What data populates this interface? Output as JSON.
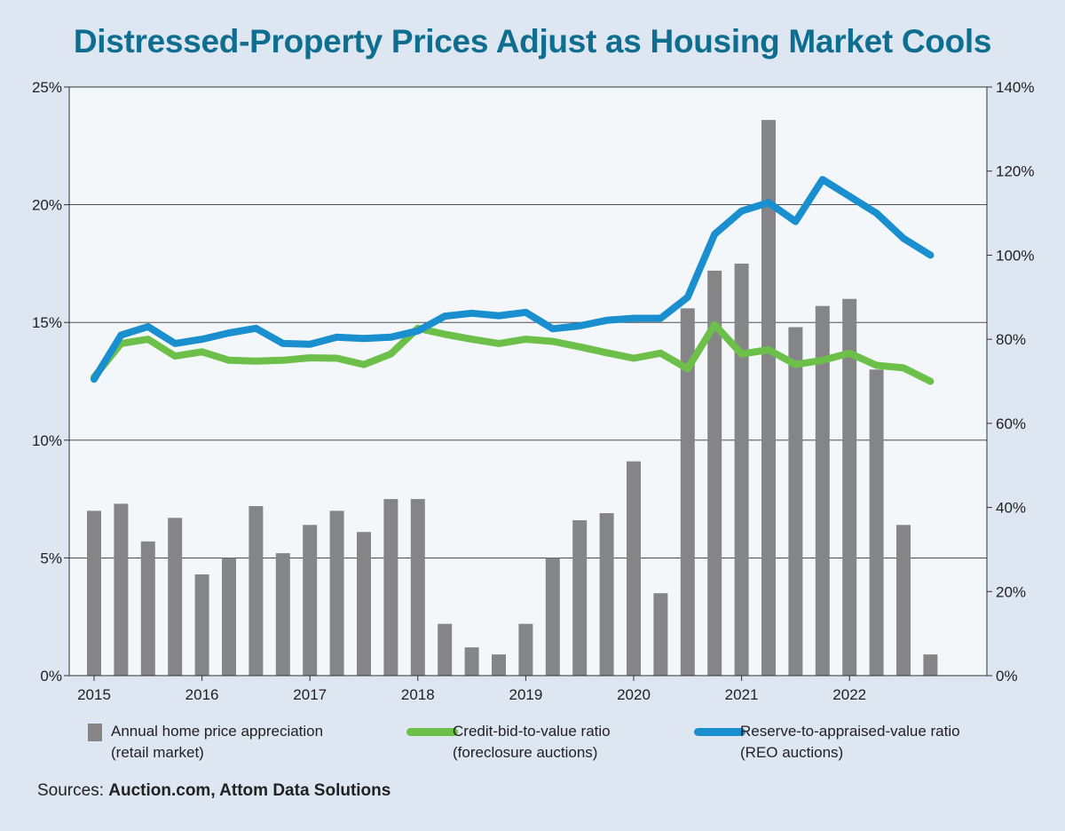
{
  "title": "Distressed-Property Prices Adjust as Housing Market Cools",
  "chart_data": {
    "type": "bar+line",
    "title": "Distressed-Property Prices Adjust as Housing Market Cools",
    "left_axis": {
      "ticks": [
        "0%",
        "5%",
        "10%",
        "15%",
        "20%",
        "25%"
      ],
      "range": [
        0,
        25
      ]
    },
    "right_axis": {
      "ticks": [
        "0%",
        "20%",
        "40%",
        "60%",
        "80%",
        "100%",
        "120%",
        "140%"
      ],
      "range": [
        0,
        140
      ]
    },
    "x_ticks": [
      "2015",
      "2016",
      "2017",
      "2018",
      "2019",
      "2020",
      "2021",
      "2022"
    ],
    "x_tick_index": [
      0,
      4,
      8,
      12,
      16,
      20,
      24,
      28
    ],
    "grid": true,
    "series": [
      {
        "name": "Annual home price appreciation (retail market)",
        "kind": "bar",
        "axis": "left",
        "color": "#858588",
        "values": [
          7.0,
          7.3,
          5.7,
          6.7,
          4.3,
          5.0,
          7.2,
          5.2,
          6.4,
          7.0,
          6.1,
          7.5,
          7.5,
          2.2,
          1.2,
          0.9,
          2.2,
          5.0,
          6.6,
          6.9,
          9.1,
          3.5,
          15.6,
          17.2,
          17.5,
          23.6,
          14.8,
          15.7,
          16.0,
          13.0,
          6.4,
          0.9
        ]
      },
      {
        "name": "Credit-bid-to-value ratio (foreclosure auctions)",
        "kind": "line",
        "axis": "right",
        "color": "#6cc04a",
        "values": [
          71,
          79,
          80,
          76,
          77,
          75,
          74.8,
          75,
          75.6,
          75.5,
          74,
          76.5,
          82.6,
          81.2,
          80,
          79,
          80,
          79.5,
          78.2,
          76.8,
          75.5,
          76.7,
          73,
          83.5,
          76.5,
          77.5,
          74,
          75,
          76.7,
          73.8,
          73.2,
          70
        ]
      },
      {
        "name": "Reserve-to-appraised-value ratio (REO auctions)",
        "kind": "line",
        "axis": "right",
        "color": "#1a8fd0",
        "values": [
          70.5,
          81,
          83,
          79,
          80,
          81.5,
          82.6,
          79,
          78.8,
          80.5,
          80.2,
          80.5,
          82,
          85.5,
          86.2,
          85.6,
          86.4,
          82.5,
          83.2,
          84.5,
          85,
          85,
          90,
          105,
          110.5,
          112.5,
          108,
          118,
          114,
          110,
          104,
          100
        ]
      }
    ]
  },
  "legend": {
    "bar_line1": "Annual home price appreciation",
    "bar_line2": "(retail market)",
    "green_line1": "Credit-bid-to-value ratio",
    "green_line2": "(foreclosure auctions)",
    "blue_line1": "Reserve-to-appraised-value ratio",
    "blue_line2": "(REO auctions)"
  },
  "sources": {
    "prefix": "Sources: ",
    "names": "Auction.com, Attom Data Solutions"
  },
  "colors": {
    "title": "#0f6e8f",
    "background": "#dde6f1",
    "plot_bg": "#f4f7fa"
  }
}
